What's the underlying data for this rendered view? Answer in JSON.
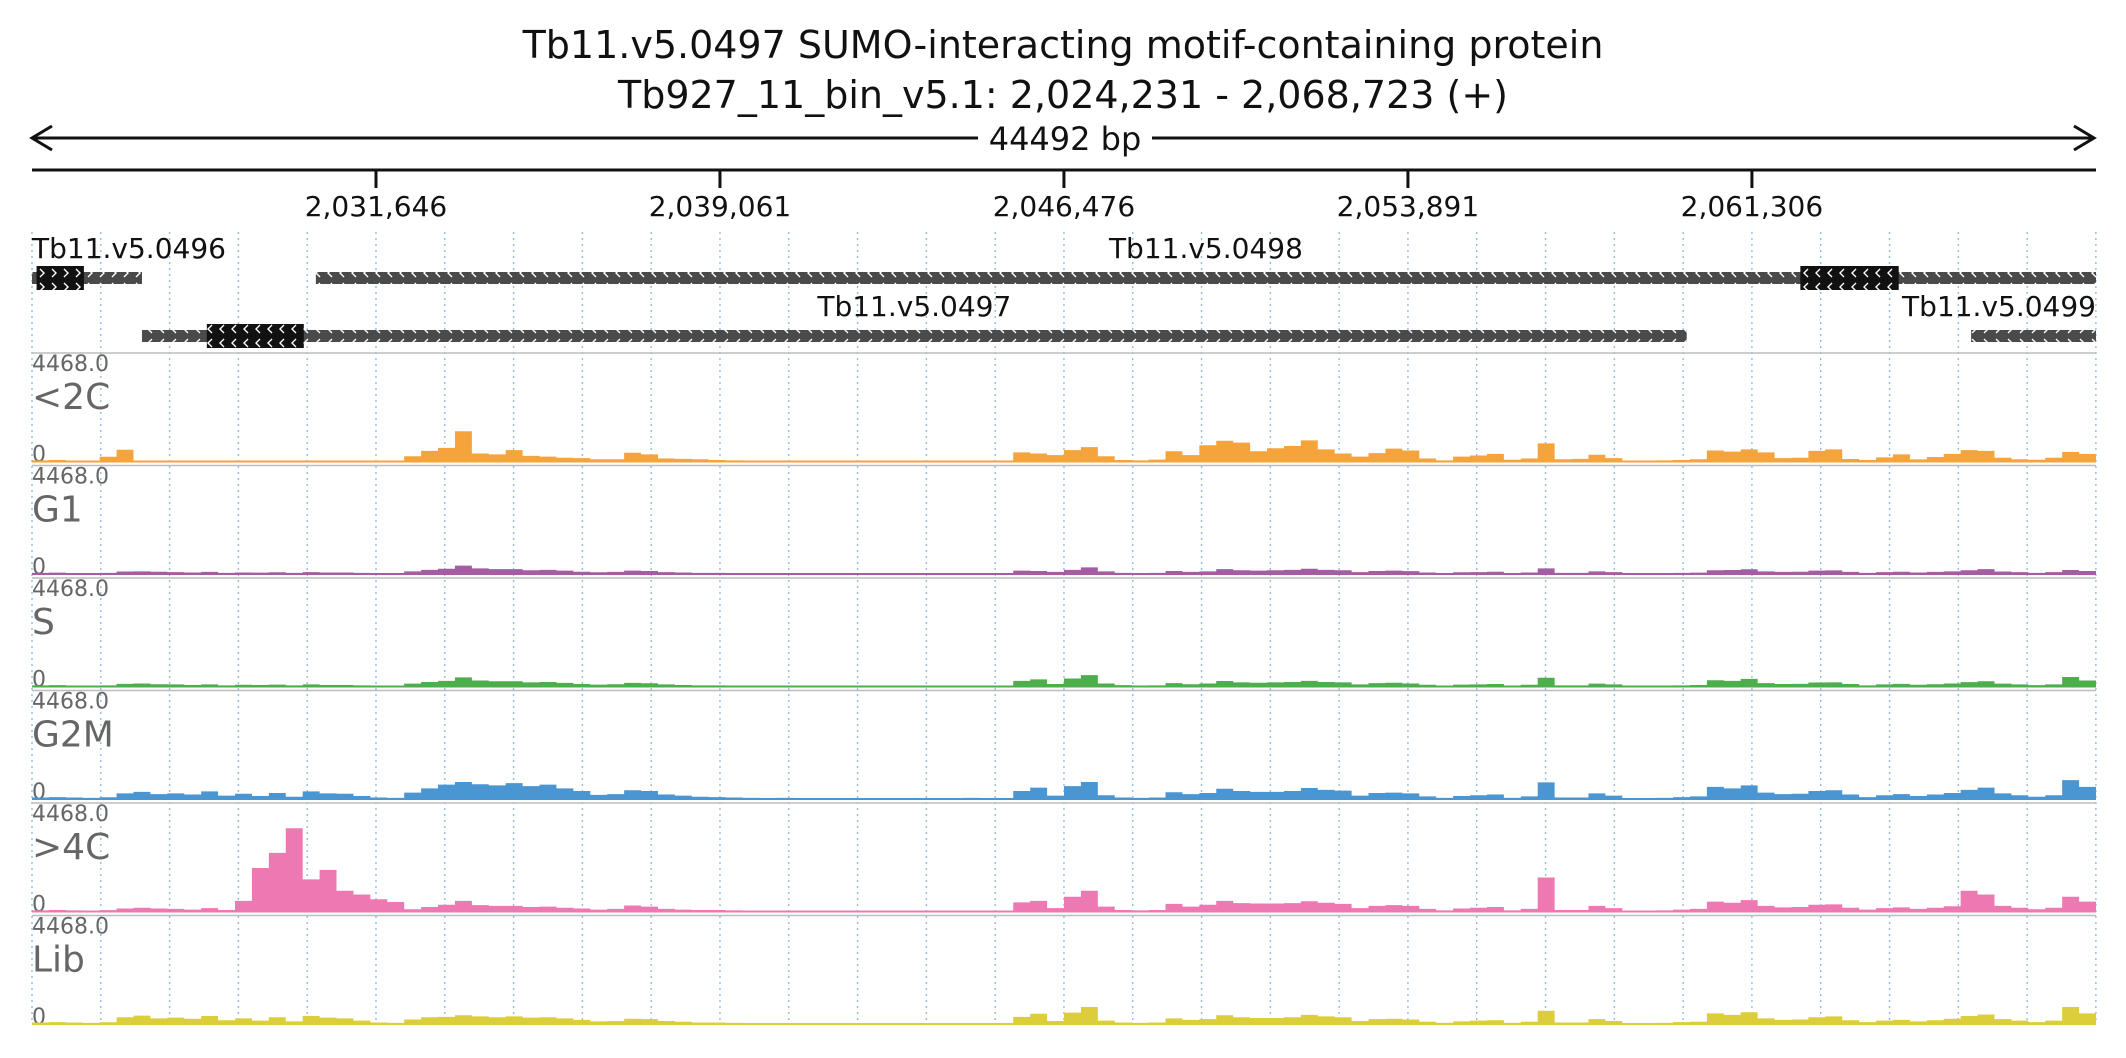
{
  "chart_data": {
    "type": "area",
    "title": "Tb11.v5.0497  SUMO-interacting motif-containing protein",
    "subtitle": "Tb927_11_bin_v5.1: 2,024,231 - 2,068,723 (+)",
    "span_label": "44492 bp",
    "xlim": [
      2024231,
      2068723
    ],
    "x_ticks": [
      2031646,
      2039061,
      2046476,
      2053891,
      2061306
    ],
    "x_tick_labels": [
      "2,031,646",
      "2,039,061",
      "2,046,476",
      "2,053,891",
      "2,061,306"
    ],
    "ylim": [
      0,
      4468.0
    ],
    "y_max_label": "4468.0",
    "y_min_label": "0",
    "grid": "vertical dotted",
    "genes": [
      {
        "name": "Tb11.v5.0496",
        "start": 2024231,
        "end": 2026602,
        "strand": "+",
        "row": 0,
        "cds": [
          2024330,
          2025350
        ],
        "label_pos": "left"
      },
      {
        "name": "Tb11.v5.0498",
        "start": 2030350,
        "end": 2068723,
        "strand": "-",
        "row": 0,
        "cds": [
          2062350,
          2064470
        ],
        "label_pos": "center"
      },
      {
        "name": "Tb11.v5.0497",
        "start": 2026602,
        "end": 2059900,
        "strand": "-",
        "row": 1,
        "cds": [
          2028000,
          2030090
        ],
        "label_pos": "center"
      },
      {
        "name": "Tb11.v5.0499",
        "start": 2066030,
        "end": 2068723,
        "strand": "+",
        "row": 1,
        "cds": null,
        "label_pos": "right"
      }
    ],
    "series": [
      {
        "name": "<2C",
        "color": "#f5a33b",
        "values": [
          60,
          80,
          50,
          40,
          250,
          620,
          40,
          30,
          20,
          10,
          20,
          10,
          20,
          30,
          20,
          20,
          30,
          20,
          30,
          40,
          20,
          10,
          280,
          560,
          720,
          1600,
          420,
          380,
          600,
          300,
          260,
          200,
          180,
          120,
          120,
          460,
          380,
          160,
          140,
          120,
          80,
          60,
          30,
          40,
          30,
          30,
          20,
          30,
          20,
          40,
          20,
          30,
          20,
          30,
          20,
          40,
          30,
          30,
          480,
          420,
          340,
          600,
          760,
          280,
          80,
          60,
          100,
          540,
          340,
          860,
          1100,
          1000,
          540,
          700,
          820,
          1120,
          640,
          420,
          260,
          440,
          680,
          580,
          160,
          60,
          260,
          320,
          400,
          90,
          160,
          960,
          120,
          140,
          360,
          180,
          30,
          30,
          60,
          80,
          120,
          580,
          520,
          640,
          480,
          180,
          200,
          560,
          640,
          130,
          80,
          220,
          380,
          110,
          240,
          400,
          600,
          560,
          200,
          120,
          90,
          200,
          500,
          400
        ]
      },
      {
        "name": "G1",
        "color": "#a55ca3",
        "values": [
          60,
          70,
          50,
          40,
          60,
          130,
          140,
          120,
          100,
          80,
          110,
          60,
          80,
          70,
          90,
          60,
          100,
          80,
          80,
          60,
          40,
          40,
          140,
          220,
          280,
          440,
          300,
          260,
          260,
          200,
          220,
          180,
          120,
          90,
          110,
          180,
          160,
          100,
          80,
          60,
          60,
          40,
          30,
          30,
          40,
          30,
          20,
          20,
          20,
          30,
          30,
          20,
          30,
          20,
          20,
          40,
          20,
          30,
          180,
          160,
          110,
          220,
          350,
          140,
          60,
          50,
          60,
          160,
          110,
          140,
          260,
          200,
          180,
          200,
          220,
          280,
          220,
          200,
          100,
          160,
          180,
          150,
          80,
          40,
          90,
          100,
          120,
          40,
          80,
          300,
          60,
          60,
          140,
          100,
          30,
          30,
          40,
          60,
          70,
          200,
          210,
          250,
          140,
          110,
          120,
          180,
          190,
          110,
          60,
          100,
          120,
          80,
          110,
          140,
          200,
          260,
          130,
          100,
          60,
          100,
          210,
          160
        ]
      },
      {
        "name": "S",
        "color": "#4dae4c",
        "values": [
          60,
          70,
          50,
          40,
          60,
          140,
          160,
          120,
          110,
          80,
          110,
          60,
          90,
          80,
          100,
          60,
          110,
          80,
          80,
          60,
          40,
          40,
          150,
          240,
          300,
          480,
          320,
          280,
          280,
          220,
          240,
          190,
          130,
          100,
          120,
          190,
          170,
          110,
          80,
          60,
          60,
          40,
          30,
          30,
          40,
          30,
          20,
          20,
          20,
          30,
          30,
          20,
          30,
          20,
          20,
          40,
          20,
          30,
          300,
          380,
          130,
          420,
          600,
          160,
          70,
          50,
          60,
          180,
          120,
          160,
          290,
          220,
          200,
          220,
          240,
          300,
          240,
          220,
          110,
          180,
          200,
          160,
          90,
          40,
          100,
          110,
          130,
          40,
          90,
          460,
          60,
          60,
          150,
          110,
          30,
          30,
          40,
          60,
          80,
          330,
          300,
          400,
          180,
          130,
          140,
          210,
          220,
          130,
          60,
          110,
          140,
          90,
          120,
          160,
          230,
          280,
          150,
          110,
          70,
          110,
          500,
          320
        ]
      },
      {
        "name": "G2M",
        "color": "#4a96d3",
        "values": [
          80,
          100,
          80,
          60,
          90,
          300,
          380,
          260,
          300,
          240,
          400,
          180,
          280,
          160,
          320,
          120,
          400,
          300,
          280,
          160,
          80,
          60,
          340,
          560,
          760,
          900,
          780,
          720,
          840,
          680,
          760,
          560,
          420,
          220,
          260,
          460,
          420,
          240,
          180,
          120,
          100,
          80,
          60,
          50,
          60,
          40,
          30,
          30,
          40,
          50,
          40,
          30,
          40,
          30,
          30,
          60,
          40,
          40,
          420,
          600,
          180,
          680,
          900,
          200,
          80,
          60,
          80,
          360,
          260,
          320,
          540,
          420,
          380,
          380,
          420,
          580,
          480,
          440,
          180,
          320,
          340,
          300,
          140,
          60,
          160,
          200,
          240,
          60,
          140,
          880,
          80,
          80,
          300,
          180,
          40,
          40,
          60,
          100,
          140,
          640,
          560,
          720,
          340,
          260,
          280,
          420,
          460,
          240,
          100,
          200,
          260,
          160,
          240,
          320,
          480,
          600,
          300,
          200,
          120,
          200,
          1000,
          640
        ]
      },
      {
        "name": ">4C",
        "color": "#ee78b2",
        "values": [
          60,
          80,
          60,
          40,
          70,
          160,
          200,
          160,
          140,
          100,
          180,
          80,
          560,
          2300,
          3100,
          4400,
          1700,
          2200,
          1100,
          900,
          650,
          500,
          120,
          240,
          360,
          560,
          340,
          300,
          300,
          240,
          260,
          200,
          160,
          100,
          140,
          320,
          260,
          140,
          100,
          80,
          80,
          60,
          40,
          40,
          50,
          40,
          30,
          30,
          30,
          40,
          40,
          30,
          40,
          30,
          30,
          50,
          30,
          40,
          480,
          560,
          180,
          780,
          1100,
          260,
          80,
          60,
          80,
          400,
          260,
          360,
          560,
          440,
          420,
          420,
          440,
          540,
          460,
          400,
          180,
          300,
          340,
          300,
          140,
          60,
          160,
          200,
          240,
          60,
          140,
          1800,
          80,
          80,
          300,
          180,
          40,
          40,
          60,
          100,
          140,
          520,
          460,
          600,
          300,
          220,
          240,
          360,
          380,
          200,
          100,
          180,
          220,
          140,
          200,
          280,
          1100,
          900,
          300,
          200,
          120,
          200,
          780,
          520
        ]
      },
      {
        "name": "Lib",
        "color": "#dccd3b",
        "values": [
          80,
          100,
          80,
          60,
          90,
          360,
          440,
          300,
          340,
          280,
          420,
          200,
          300,
          180,
          360,
          140,
          420,
          340,
          300,
          180,
          80,
          60,
          240,
          360,
          380,
          460,
          400,
          360,
          400,
          340,
          360,
          300,
          220,
          140,
          160,
          280,
          260,
          160,
          120,
          80,
          80,
          60,
          40,
          40,
          50,
          40,
          30,
          30,
          30,
          40,
          40,
          30,
          40,
          30,
          30,
          50,
          30,
          40,
          380,
          540,
          160,
          600,
          900,
          180,
          80,
          60,
          80,
          300,
          220,
          260,
          460,
          360,
          320,
          320,
          360,
          480,
          400,
          360,
          160,
          260,
          280,
          240,
          120,
          60,
          140,
          180,
          200,
          60,
          120,
          700,
          80,
          80,
          260,
          160,
          40,
          40,
          60,
          100,
          120,
          560,
          480,
          620,
          300,
          220,
          240,
          360,
          400,
          200,
          100,
          180,
          220,
          140,
          200,
          280,
          420,
          500,
          260,
          180,
          100,
          180,
          900,
          560
        ]
      }
    ]
  }
}
